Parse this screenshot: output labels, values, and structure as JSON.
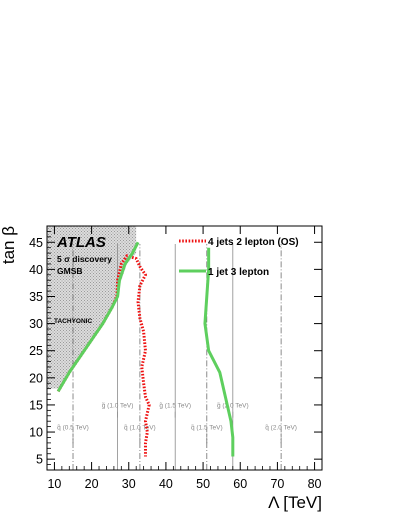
{
  "chart_data": {
    "type": "line",
    "xlabel": "Λ [TeV]",
    "ylabel": "tan β",
    "xlim": [
      8,
      82
    ],
    "ylim": [
      3,
      48
    ],
    "xticks": [
      10,
      20,
      30,
      40,
      50,
      60,
      70,
      80
    ],
    "yticks": [
      5,
      10,
      15,
      20,
      25,
      30,
      35,
      40,
      45
    ],
    "annotations": {
      "atlas": "ATLAS",
      "line1": "5 σ discovery",
      "line2": "GMSB",
      "tachyonic": "TACHYONIC"
    },
    "excluded_region": {
      "label": "TACHYONIC",
      "boundary": [
        {
          "x": 11.5,
          "y": 18
        },
        {
          "x": 14.0,
          "y": 21
        },
        {
          "x": 17.0,
          "y": 24
        },
        {
          "x": 20.0,
          "y": 27
        },
        {
          "x": 23.0,
          "y": 30
        },
        {
          "x": 25.5,
          "y": 33
        },
        {
          "x": 26.5,
          "y": 35
        },
        {
          "x": 28.0,
          "y": 38
        },
        {
          "x": 29.5,
          "y": 41
        },
        {
          "x": 32.0,
          "y": 43
        },
        {
          "x": 32.0,
          "y": 48
        }
      ]
    },
    "series": [
      {
        "name": "4 jets 2 lepton (OS)",
        "color": "#ee1111",
        "style": "dotted",
        "points": [
          {
            "x": 11.0,
            "y": 17.5
          },
          {
            "x": 14.0,
            "y": 21.0
          },
          {
            "x": 17.0,
            "y": 24.0
          },
          {
            "x": 20.0,
            "y": 27.0
          },
          {
            "x": 23.0,
            "y": 30.0
          },
          {
            "x": 25.5,
            "y": 33.0
          },
          {
            "x": 26.8,
            "y": 35.0
          },
          {
            "x": 27.0,
            "y": 38.0
          },
          {
            "x": 28.0,
            "y": 41.0
          },
          {
            "x": 29.5,
            "y": 42.5
          },
          {
            "x": 32.0,
            "y": 42.0
          },
          {
            "x": 33.0,
            "y": 40.5
          },
          {
            "x": 34.5,
            "y": 39.0
          },
          {
            "x": 33.0,
            "y": 37.0
          },
          {
            "x": 32.5,
            "y": 34.0
          },
          {
            "x": 33.0,
            "y": 31.0
          },
          {
            "x": 34.0,
            "y": 28.5
          },
          {
            "x": 34.5,
            "y": 25.0
          },
          {
            "x": 33.5,
            "y": 22.0
          },
          {
            "x": 34.0,
            "y": 19.0
          },
          {
            "x": 34.5,
            "y": 16.5
          },
          {
            "x": 35.5,
            "y": 15.0
          },
          {
            "x": 34.5,
            "y": 12.0
          },
          {
            "x": 35.0,
            "y": 10.0
          },
          {
            "x": 34.5,
            "y": 8.0
          },
          {
            "x": 34.5,
            "y": 5.5
          }
        ]
      },
      {
        "name": "1 jet 3 lepton",
        "color": "#5ecf5e",
        "style": "solid",
        "points": [
          {
            "x": 11.0,
            "y": 17.5
          },
          {
            "x": 14.0,
            "y": 21.0
          },
          {
            "x": 17.0,
            "y": 24.0
          },
          {
            "x": 20.0,
            "y": 27.0
          },
          {
            "x": 23.0,
            "y": 30.0
          },
          {
            "x": 25.5,
            "y": 33.0
          },
          {
            "x": 27.0,
            "y": 35.0
          },
          {
            "x": 27.5,
            "y": 38.0
          },
          {
            "x": 29.0,
            "y": 41.0
          },
          {
            "x": 31.0,
            "y": 43.0
          },
          {
            "x": 32.5,
            "y": 45.0
          }
        ]
      },
      {
        "name": "1 jet 3 lepton",
        "color": "#5ecf5e",
        "style": "solid",
        "points": [
          {
            "x": 51.5,
            "y": 44.0
          },
          {
            "x": 51.5,
            "y": 40.0
          },
          {
            "x": 51.0,
            "y": 35.0
          },
          {
            "x": 50.5,
            "y": 30.0
          },
          {
            "x": 51.5,
            "y": 25.0
          },
          {
            "x": 54.5,
            "y": 21.0
          },
          {
            "x": 55.5,
            "y": 18.0
          },
          {
            "x": 56.5,
            "y": 15.0
          },
          {
            "x": 57.5,
            "y": 12.0
          },
          {
            "x": 58.0,
            "y": 9.0
          },
          {
            "x": 58.0,
            "y": 5.5
          }
        ]
      }
    ],
    "mass_contours": [
      {
        "label": "g̃ (1.0 TeV)",
        "x": 27.0,
        "style": "solid",
        "label_y": 14.5
      },
      {
        "label": "g̃ (1.5 TeV)",
        "x": 42.5,
        "style": "solid",
        "label_y": 14.5
      },
      {
        "label": "g̃ (2.0 TeV)",
        "x": 58.0,
        "style": "solid",
        "label_y": 14.5
      },
      {
        "label": "q̃ (0.5 TeV)",
        "x": 15.0,
        "style": "dashdot",
        "label_y": 10.5
      },
      {
        "label": "q̃ (1.0 TeV)",
        "x": 33.0,
        "style": "dashdot",
        "label_y": 10.5
      },
      {
        "label": "q̃ (1.5 TeV)",
        "x": 51.0,
        "style": "dashdot",
        "label_y": 10.5
      },
      {
        "label": "q̃ (2.0 TeV)",
        "x": 71.0,
        "style": "dashdot",
        "label_y": 10.5
      }
    ]
  }
}
